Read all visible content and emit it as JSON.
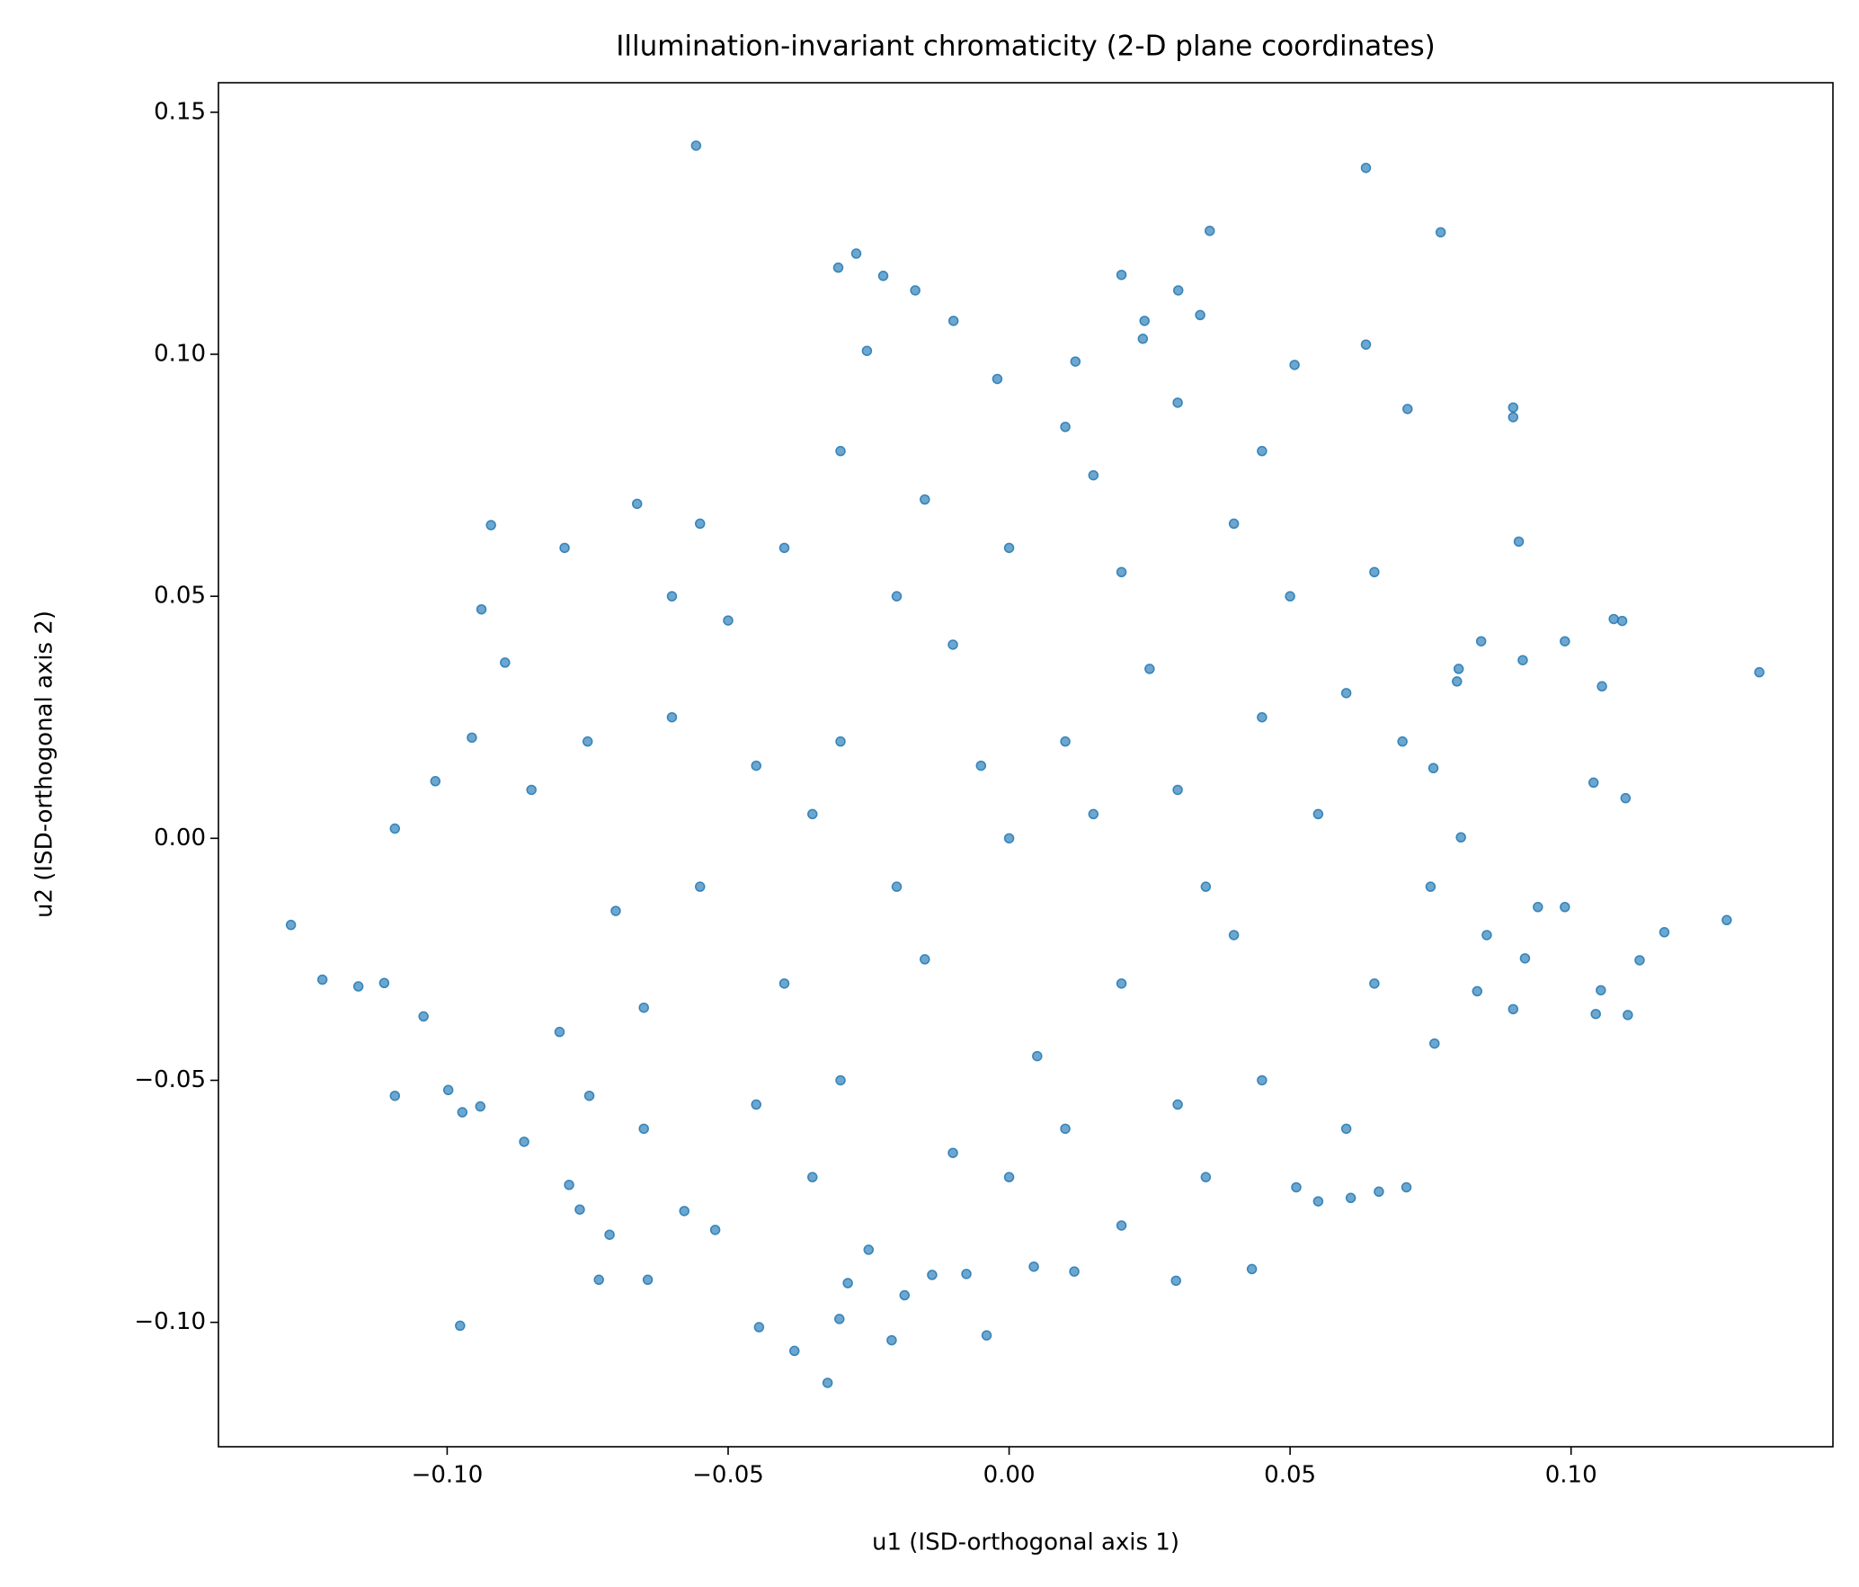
{
  "chart_data": {
    "type": "scatter",
    "title": "Illumination-invariant chromaticity (2-D plane coordinates)",
    "x_label": "u1 (ISD-orthogonal axis 1)",
    "y_label": "u2 (ISD-orthogonal axis 2)",
    "color": "#1f77b4",
    "xlim": [
      -0.1407,
      0.1466
    ],
    "ylim": [
      -0.1257,
      0.1561
    ],
    "xticks": [
      {
        "value": -0.1,
        "label": "−0.10"
      },
      {
        "value": -0.05,
        "label": "−0.05"
      },
      {
        "value": 0,
        "label": "0.00"
      },
      0.05,
      {
        "value": 0.1,
        "label": "0.10"
      }
    ],
    "yticks": [
      {
        "value": -0.1,
        "label": "−0.10"
      },
      {
        "value": -0.05,
        "label": "−0.05"
      },
      {
        "value": 0,
        "label": "0.00"
      },
      0.05,
      {
        "value": 0.1,
        "label": "0.10"
      },
      0.15
    ],
    "x": [
      -0.0557,
      0.0635,
      0.0768,
      0.0357,
      -0.0272,
      -0.0304,
      -0.0224,
      -0.0167,
      0.02,
      0.0301,
      -0.0099,
      0.0241,
      0.034,
      -0.0253,
      0.0238,
      0.0635,
      0.0118,
      0.0508,
      -0.0021,
      0.0897,
      0.0897,
      0.0709,
      -0.1278,
      -0.1222,
      -0.1158,
      -0.1112,
      -0.1042,
      -0.1093,
      0.1335,
      0.1277,
      0.1166,
      0.1122,
      0.1101,
      0.1044,
      0.1053,
      0.1097,
      0.104,
      0.1055,
      0.0989,
      0.1076,
      0.1091,
      0.0907,
      -0.0977,
      -0.0445,
      -0.004,
      -0.0209,
      -0.0382,
      -0.0323,
      -0.0302,
      -0.0287,
      -0.0186,
      -0.073,
      -0.0643,
      -0.0523,
      -0.0922,
      -0.0791,
      -0.0662,
      -0.0939,
      -0.0897,
      -0.1021,
      -0.1093,
      -0.0956,
      0.084,
      0.0914,
      0.0797,
      0.0755,
      0.0804,
      0.0989,
      0.0941,
      0.0918,
      0.0897,
      0.0833,
      0.0757,
      0.0707,
      0.0658,
      0.0608,
      0.0511,
      0.0432,
      0.0297,
      0.0116,
      0.0044,
      -0.0076,
      -0.0137,
      -0.0863,
      -0.0747,
      -0.0973,
      -0.0941,
      -0.0998,
      -0.0783,
      -0.0764,
      -0.0711,
      -0.0578,
      0,
      0.01,
      -0.02,
      0.03,
      -0.03,
      0.02,
      -0.01,
      0.04,
      -0.04,
      0.005,
      0.025,
      -0.035,
      0.045,
      -0.015,
      0.015,
      -0.005,
      0.035,
      -0.045,
      0.055,
      -0.055,
      0.06,
      -0.06,
      0.065,
      -0.065,
      0.02,
      -0.02,
      0.01,
      -0.01,
      0.03,
      -0.03,
      0.07,
      -0.07,
      0.075,
      -0.075,
      0.05,
      -0.05,
      0.045,
      -0.045,
      0,
      0,
      0.08,
      -0.08,
      0.085,
      -0.085,
      0.04,
      -0.04,
      0.035,
      -0.035,
      0.015,
      -0.015,
      0.02,
      -0.025,
      0.06,
      -0.06,
      0.065,
      -0.065,
      0.01,
      -0.03,
      0.03,
      0.045,
      -0.055,
      0.055
    ],
    "y": [
      0.1431,
      0.1385,
      0.1252,
      0.1255,
      0.1208,
      0.1179,
      0.1162,
      0.1132,
      0.1164,
      0.1132,
      0.1069,
      0.1069,
      0.1081,
      0.1007,
      0.1032,
      0.102,
      0.0985,
      0.0978,
      0.0949,
      0.089,
      0.087,
      0.0887,
      -0.0179,
      -0.0292,
      -0.0306,
      -0.0299,
      -0.0368,
      -0.0532,
      0.0343,
      -0.0169,
      -0.0194,
      -0.0252,
      -0.0365,
      -0.0363,
      -0.0314,
      0.0083,
      0.0115,
      0.0314,
      0.0407,
      0.0453,
      0.0449,
      0.0613,
      -0.1007,
      -0.101,
      -0.1027,
      -0.1037,
      -0.1059,
      -0.1125,
      -0.0993,
      -0.0919,
      -0.0944,
      -0.0912,
      -0.0912,
      -0.0809,
      0.0647,
      0.06,
      0.0691,
      0.0473,
      0.0363,
      0.0118,
      0.002,
      0.0208,
      0.0407,
      0.0368,
      0.0324,
      0.0145,
      0.0002,
      -0.0142,
      -0.0142,
      -0.0248,
      -0.0353,
      -0.0316,
      -0.0424,
      -0.0721,
      -0.073,
      -0.0743,
      -0.0721,
      -0.089,
      -0.0914,
      -0.0895,
      -0.0885,
      -0.09,
      -0.0902,
      -0.0627,
      -0.0532,
      -0.0566,
      -0.0554,
      -0.052,
      -0.0716,
      -0.0767,
      -0.0819,
      -0.077,
      0,
      0.02,
      -0.01,
      0.01,
      0.02,
      -0.03,
      0.04,
      -0.02,
      -0.03,
      -0.045,
      0.035,
      0.005,
      0.025,
      -0.025,
      0.005,
      0.015,
      -0.01,
      0.015,
      0.005,
      -0.01,
      0.03,
      0.025,
      -0.03,
      -0.035,
      0.055,
      0.05,
      -0.06,
      -0.065,
      -0.055,
      -0.05,
      0.02,
      -0.015,
      -0.01,
      0.02,
      0.05,
      0.045,
      -0.05,
      -0.055,
      0.06,
      -0.07,
      0.035,
      -0.04,
      -0.02,
      0.01,
      0.065,
      0.06,
      -0.07,
      -0.07,
      0.075,
      0.07,
      -0.08,
      -0.085,
      -0.06,
      0.05,
      0.055,
      -0.06,
      0.085,
      0.08,
      0.09,
      0.08,
      0.065,
      -0.075
    ]
  }
}
